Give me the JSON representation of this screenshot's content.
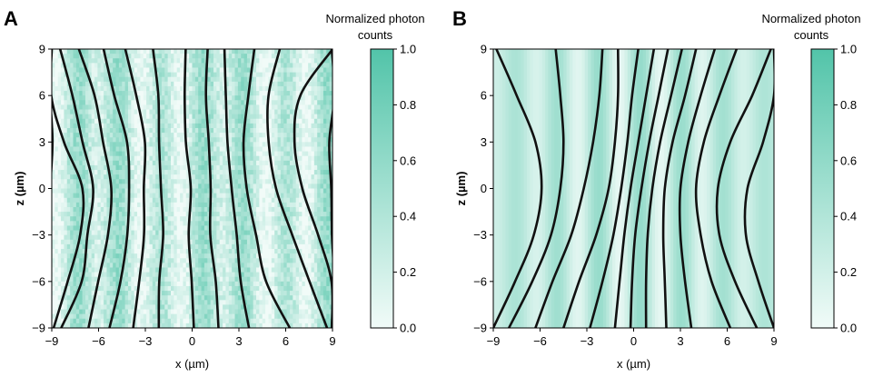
{
  "chart_data": [
    {
      "panel_label": "A",
      "type": "heatmap",
      "xlabel": "x (µm)",
      "ylabel": "z (µm)",
      "xlim": [
        -9,
        9
      ],
      "ylim": [
        -9,
        9
      ],
      "xticks": [
        "−9",
        "−6",
        "−3",
        "0",
        "3",
        "6",
        "9"
      ],
      "yticks": [
        "−9",
        "−6",
        "−3",
        "0",
        "3",
        "6",
        "9"
      ],
      "colorbar": {
        "title_line1": "Normalized photon",
        "title_line2": "counts",
        "ticks": [
          "0.0",
          "0.2",
          "0.4",
          "0.6",
          "0.8",
          "1.0"
        ],
        "range": [
          0,
          1
        ],
        "color_low": "#f1fbf8",
        "color_high": "#52c4a9"
      },
      "background": "noisy vertical stripes (measured)",
      "contours_note": "approximate x positions (µm) at z = 9, 6, 3, 0, -3, -6, -9",
      "contours": [
        [
          -9,
          -9,
          -9,
          -9,
          -9,
          -9,
          -9
        ],
        [
          -9,
          -9,
          -8.2,
          -7.1,
          -7.3,
          -8.0,
          -9
        ],
        [
          -8.4,
          -7.6,
          -7.0,
          -6.4,
          -6.6,
          -7.2,
          -8.4
        ],
        [
          -7.2,
          -6.2,
          -5.6,
          -5.2,
          -5.4,
          -5.9,
          -6.6
        ],
        [
          -5.8,
          -4.9,
          -4.3,
          -4.1,
          -4.2,
          -4.6,
          -5.2
        ],
        [
          -4.3,
          -3.5,
          -3.1,
          -3.0,
          -3.1,
          -3.3,
          -3.7
        ],
        [
          -2.4,
          -2.2,
          -2.0,
          -1.9,
          -1.9,
          -2.0,
          -2.1
        ],
        [
          -0.5,
          -0.4,
          -0.3,
          -0.2,
          -0.2,
          -0.1,
          0.1
        ],
        [
          1.0,
          1.0,
          1.1,
          1.1,
          1.2,
          1.4,
          1.8
        ],
        [
          2.0,
          2.2,
          2.3,
          2.5,
          2.8,
          3.2,
          3.6
        ],
        [
          4.0,
          3.5,
          3.3,
          3.4,
          4.0,
          4.8,
          6.3
        ],
        [
          5.6,
          5.0,
          5.0,
          5.3,
          6.3,
          7.5,
          8.6
        ],
        [
          9.0,
          7.0,
          6.5,
          7.0,
          8.0,
          9.0,
          9.0
        ],
        [
          9.0,
          9.0,
          8.8,
          9.0,
          9.0,
          9.0,
          9.0
        ]
      ]
    },
    {
      "panel_label": "B",
      "type": "heatmap",
      "xlabel": "x (µm)",
      "ylabel": "z (µm)",
      "xlim": [
        -9,
        9
      ],
      "ylim": [
        -9,
        9
      ],
      "xticks": [
        "−9",
        "−6",
        "−3",
        "0",
        "3",
        "6",
        "9"
      ],
      "yticks": [
        "−9",
        "−6",
        "−3",
        "0",
        "3",
        "6",
        "9"
      ],
      "colorbar": {
        "title_line1": "Normalized photon",
        "title_line2": "counts",
        "ticks": [
          "0.0",
          "0.2",
          "0.4",
          "0.6",
          "0.8",
          "1.0"
        ],
        "range": [
          0,
          1
        ],
        "color_low": "#f1fbf8",
        "color_high": "#52c4a9"
      },
      "background": "smooth vertical stripes (simulated)",
      "contours_note": "approximate x positions (µm) at z = 9, 6, 3, 0, -3, -6, -9",
      "contours": [
        [
          -8.8,
          -7.5,
          -6.3,
          -5.9,
          -6.4,
          -7.6,
          -9.0
        ],
        [
          -5.0,
          -4.7,
          -4.5,
          -4.7,
          -5.3,
          -6.5,
          -8.0
        ],
        [
          -2.0,
          -2.2,
          -2.6,
          -3.2,
          -4.0,
          -5.2,
          -6.3
        ],
        [
          -1.0,
          -1.0,
          -1.2,
          -1.6,
          -2.4,
          -3.5,
          -4.5
        ],
        [
          0.3,
          -0.1,
          -0.4,
          -0.8,
          -1.3,
          -2.0,
          -2.8
        ],
        [
          1.3,
          0.8,
          0.3,
          -0.2,
          -0.6,
          -0.9,
          -1.2
        ],
        [
          2.2,
          1.6,
          1.0,
          0.5,
          0.1,
          -0.1,
          -0.2
        ],
        [
          3.1,
          2.4,
          1.7,
          1.2,
          0.9,
          0.8,
          0.8
        ],
        [
          4.0,
          3.3,
          2.5,
          2.0,
          1.9,
          2.0,
          2.1
        ],
        [
          5.2,
          4.3,
          3.5,
          3.0,
          3.0,
          3.3,
          3.7
        ],
        [
          6.6,
          5.5,
          4.5,
          4.0,
          4.3,
          5.0,
          6.2
        ],
        [
          8.8,
          7.6,
          6.2,
          5.4,
          5.5,
          6.5,
          7.9
        ],
        [
          9.0,
          9.0,
          8.3,
          7.3,
          7.2,
          8.0,
          9.0
        ]
      ]
    }
  ]
}
